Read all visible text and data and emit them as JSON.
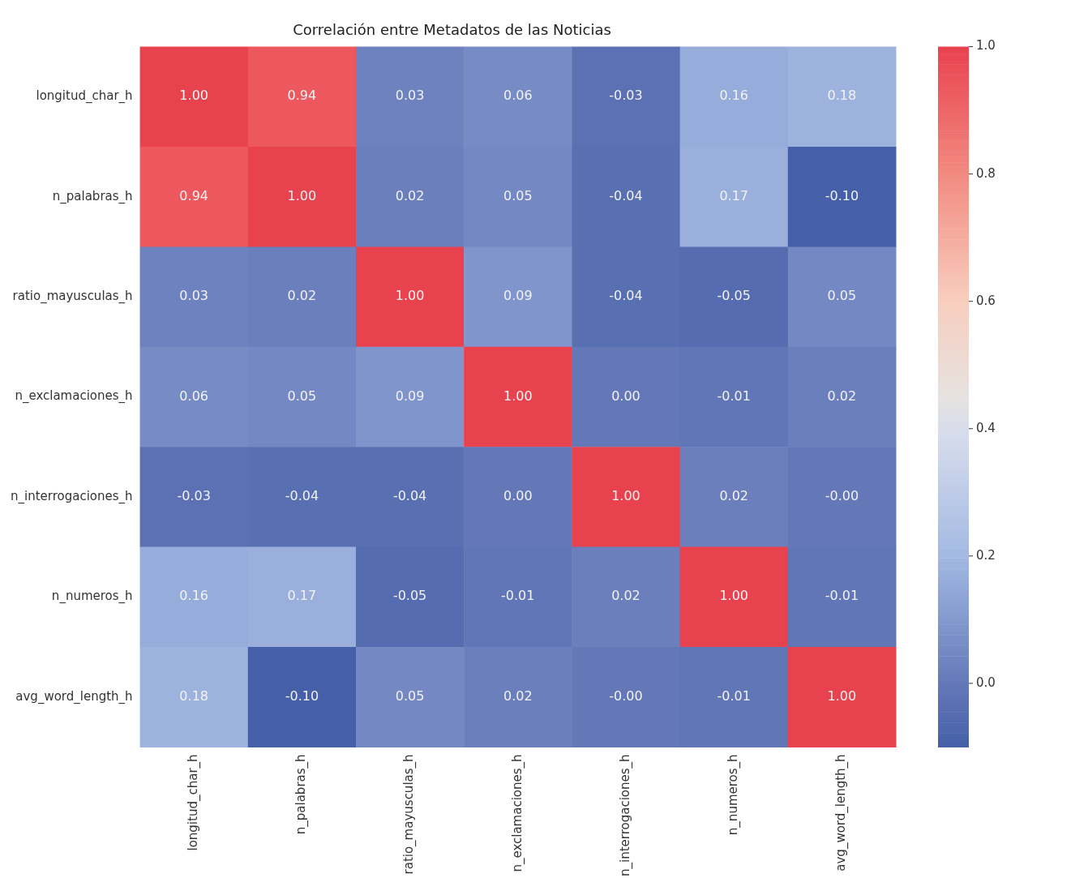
{
  "chart_data": {
    "type": "heatmap",
    "title": "Correlación entre Metadatos de las Noticias",
    "categories": [
      "longitud_char_h",
      "n_palabras_h",
      "ratio_mayusculas_h",
      "n_exclamaciones_h",
      "n_interrogaciones_h",
      "n_numeros_h",
      "avg_word_length_h"
    ],
    "y_categories": [
      "longitud_char_h",
      "n_palabras_h",
      "ratio_mayusculas_h",
      "n_exclamaciones_h",
      "n_interrogaciones_h",
      "n_numeros_h",
      "avg_word_length_h"
    ],
    "cells": [
      [
        1.0,
        0.94,
        0.03,
        0.06,
        -0.03,
        0.16,
        0.18
      ],
      [
        0.94,
        1.0,
        0.02,
        0.05,
        -0.04,
        0.17,
        -0.1
      ],
      [
        0.03,
        0.02,
        1.0,
        0.09,
        -0.04,
        -0.05,
        0.05
      ],
      [
        0.06,
        0.05,
        0.09,
        1.0,
        0.0,
        -0.01,
        0.02
      ],
      [
        -0.03,
        -0.04,
        -0.04,
        0.0,
        1.0,
        0.02,
        0.0
      ],
      [
        0.16,
        0.17,
        -0.05,
        -0.01,
        0.02,
        1.0,
        -0.01
      ],
      [
        0.18,
        -0.1,
        0.05,
        0.02,
        0.0,
        -0.01,
        1.0
      ]
    ],
    "cell_labels": [
      [
        "1.00",
        "0.94",
        "0.03",
        "0.06",
        "-0.03",
        "0.16",
        "0.18"
      ],
      [
        "0.94",
        "1.00",
        "0.02",
        "0.05",
        "-0.04",
        "0.17",
        "-0.10"
      ],
      [
        "0.03",
        "0.02",
        "1.00",
        "0.09",
        "-0.04",
        "-0.05",
        "0.05"
      ],
      [
        "0.06",
        "0.05",
        "0.09",
        "1.00",
        "0.00",
        "-0.01",
        "0.02"
      ],
      [
        "-0.03",
        "-0.04",
        "-0.04",
        "0.00",
        "1.00",
        "0.02",
        "-0.00"
      ],
      [
        "0.16",
        "0.17",
        "-0.05",
        "-0.01",
        "0.02",
        "1.00",
        "-0.01"
      ],
      [
        "0.18",
        "-0.10",
        "0.05",
        "0.02",
        "-0.00",
        "-0.01",
        "1.00"
      ]
    ],
    "clim": [
      -0.1,
      1.0
    ],
    "cticks": [
      {
        "value": 0,
        "label": "0.0"
      },
      {
        "value": 0.2,
        "label": "0.2"
      },
      {
        "value": 0.4,
        "label": "0.4"
      },
      {
        "value": 0.6,
        "label": "0.6"
      },
      {
        "value": 0.8,
        "label": "0.8"
      },
      {
        "value": 1,
        "label": "1.0"
      }
    ]
  }
}
